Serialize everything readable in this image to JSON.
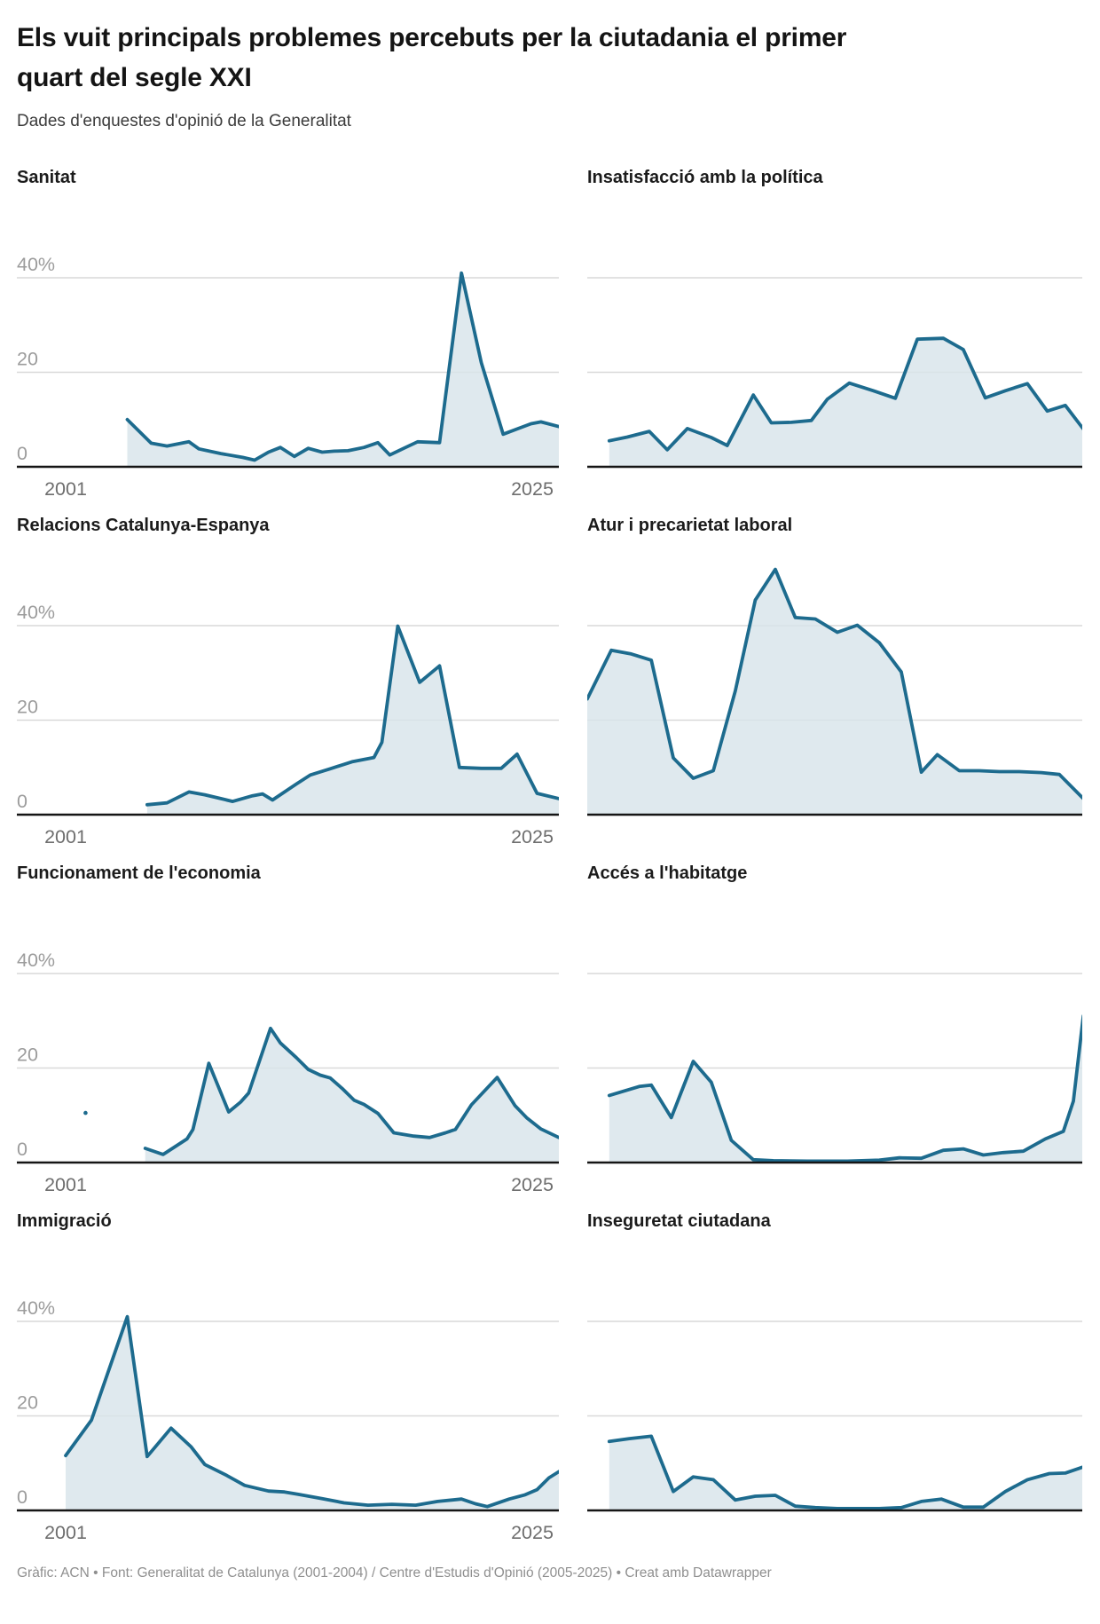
{
  "header": {
    "title": "Els vuit principals problemes percebuts per la ciutadania el primer quart del segle XXI",
    "subtitle": "Dades d'enquestes d'opinió de la Generalitat"
  },
  "footer": {
    "credit": "Gràfic: ACN • Font: Generalitat de Catalunya (2001-2004) / Centre d'Estudis d'Opinió (2005-2025) • Creat amb Datawrapper"
  },
  "colors": {
    "line": "#1d6b8e",
    "fill": "#d8e4ea",
    "grid": "#d9d9d9",
    "baseline": "#151515",
    "tick_label": "#9c9c9c",
    "year_label": "#6e6e6e"
  },
  "axis": {
    "x_range": [
      2001,
      2025.8
    ],
    "y_max": 54,
    "grid_values": [
      20,
      40
    ],
    "y_ticks": [
      {
        "value": 0,
        "label": "0"
      },
      {
        "value": 20,
        "label": "20"
      },
      {
        "value": 40,
        "label": "40%"
      }
    ],
    "x_ticks": [
      {
        "year": 2001,
        "label": "2001"
      },
      {
        "year": 2025,
        "label": "2025"
      }
    ]
  },
  "chart_data": [
    {
      "type": "area",
      "title": "Sanitat",
      "col": "left",
      "show_axis_labels": true,
      "ylabel": "%",
      "points": [
        [
          2004.1,
          10
        ],
        [
          2005.3,
          5
        ],
        [
          2006.1,
          4.4
        ],
        [
          2007.2,
          5.3
        ],
        [
          2007.7,
          3.8
        ],
        [
          2008.8,
          2.8
        ],
        [
          2009.9,
          2
        ],
        [
          2010.5,
          1.4
        ],
        [
          2011.2,
          3.1
        ],
        [
          2011.8,
          4.1
        ],
        [
          2012.5,
          2.2
        ],
        [
          2013.2,
          3.9
        ],
        [
          2013.9,
          3.1
        ],
        [
          2014.5,
          3.3
        ],
        [
          2015.2,
          3.4
        ],
        [
          2016,
          4.1
        ],
        [
          2016.7,
          5.1
        ],
        [
          2017.3,
          2.5
        ],
        [
          2018,
          3.9
        ],
        [
          2018.7,
          5.3
        ],
        [
          2019.8,
          5.1
        ],
        [
          2020.9,
          41
        ],
        [
          2021.9,
          22
        ],
        [
          2023,
          6.9
        ],
        [
          2023.7,
          8
        ],
        [
          2024.4,
          9.1
        ],
        [
          2024.9,
          9.5
        ],
        [
          2025.8,
          8.5
        ]
      ]
    },
    {
      "type": "area",
      "title": "Insatisfacció amb la política",
      "col": "right",
      "show_axis_labels": false,
      "points": [
        [
          2002.1,
          5.5
        ],
        [
          2003,
          6.3
        ],
        [
          2004.1,
          7.5
        ],
        [
          2005,
          3.6
        ],
        [
          2006,
          8.1
        ],
        [
          2007.2,
          6.2
        ],
        [
          2008,
          4.5
        ],
        [
          2009.3,
          15.2
        ],
        [
          2010.2,
          9.3
        ],
        [
          2011.2,
          9.4
        ],
        [
          2012.2,
          9.8
        ],
        [
          2013,
          14.3
        ],
        [
          2014.1,
          17.7
        ],
        [
          2015.3,
          16.1
        ],
        [
          2016.4,
          14.5
        ],
        [
          2017.5,
          27
        ],
        [
          2018.8,
          27.2
        ],
        [
          2019.8,
          24.8
        ],
        [
          2020.9,
          14.6
        ],
        [
          2021.9,
          16.1
        ],
        [
          2023,
          17.6
        ],
        [
          2024,
          11.8
        ],
        [
          2024.9,
          13
        ],
        [
          2025.8,
          8
        ]
      ]
    },
    {
      "type": "area",
      "title": "Relacions Catalunya-Espanya",
      "col": "left",
      "show_axis_labels": true,
      "points": [
        [
          2005.1,
          2.1
        ],
        [
          2006.1,
          2.5
        ],
        [
          2007.2,
          4.8
        ],
        [
          2008,
          4.2
        ],
        [
          2008.8,
          3.4
        ],
        [
          2009.4,
          2.8
        ],
        [
          2010.4,
          4
        ],
        [
          2010.9,
          4.4
        ],
        [
          2011.4,
          3.1
        ],
        [
          2012.6,
          6.5
        ],
        [
          2013.3,
          8.4
        ],
        [
          2014.3,
          9.7
        ],
        [
          2015.4,
          11.2
        ],
        [
          2016.5,
          12.1
        ],
        [
          2016.9,
          15.3
        ],
        [
          2017.7,
          39.9
        ],
        [
          2018.8,
          28
        ],
        [
          2019.8,
          31.5
        ],
        [
          2020.8,
          10
        ],
        [
          2021.9,
          9.8
        ],
        [
          2022.9,
          9.8
        ],
        [
          2023.7,
          12.8
        ],
        [
          2024.7,
          4.5
        ],
        [
          2025.8,
          3.4
        ]
      ]
    },
    {
      "type": "area",
      "title": "Atur i precarietat laboral",
      "col": "right",
      "show_axis_labels": false,
      "points": [
        [
          2001,
          24.5
        ],
        [
          2002.2,
          34.8
        ],
        [
          2003.2,
          34
        ],
        [
          2004.2,
          32.7
        ],
        [
          2005.3,
          12
        ],
        [
          2006.3,
          7.7
        ],
        [
          2007.3,
          9.3
        ],
        [
          2008.4,
          26.2
        ],
        [
          2009.4,
          45.4
        ],
        [
          2010.4,
          51.9
        ],
        [
          2011.4,
          41.7
        ],
        [
          2012.4,
          41.4
        ],
        [
          2013.5,
          38.6
        ],
        [
          2014.5,
          40.1
        ],
        [
          2015.6,
          36.4
        ],
        [
          2016.7,
          30.2
        ],
        [
          2017.7,
          9
        ],
        [
          2018.5,
          12.7
        ],
        [
          2019.6,
          9.3
        ],
        [
          2020.6,
          9.3
        ],
        [
          2021.6,
          9.1
        ],
        [
          2022.6,
          9.1
        ],
        [
          2023.7,
          8.9
        ],
        [
          2024.6,
          8.5
        ],
        [
          2025.8,
          3.4
        ]
      ]
    },
    {
      "type": "area",
      "title": "Funcionament de l'economia",
      "col": "left",
      "show_axis_labels": true,
      "isolated_points": [
        [
          2002,
          10.5
        ]
      ],
      "points": [
        [
          2005,
          3
        ],
        [
          2005.9,
          1.7
        ],
        [
          2007.1,
          5
        ],
        [
          2007.4,
          7
        ],
        [
          2008.2,
          21
        ],
        [
          2009.2,
          10.7
        ],
        [
          2009.8,
          12.8
        ],
        [
          2010.2,
          14.7
        ],
        [
          2011.3,
          28.4
        ],
        [
          2011.8,
          25.3
        ],
        [
          2012.6,
          22.2
        ],
        [
          2013.2,
          19.7
        ],
        [
          2013.8,
          18.5
        ],
        [
          2014.3,
          17.9
        ],
        [
          2014.9,
          15.7
        ],
        [
          2015.5,
          13.2
        ],
        [
          2016,
          12.3
        ],
        [
          2016.7,
          10.4
        ],
        [
          2017.5,
          6.3
        ],
        [
          2018.5,
          5.6
        ],
        [
          2019.3,
          5.3
        ],
        [
          2020.1,
          6.3
        ],
        [
          2020.6,
          7
        ],
        [
          2021.4,
          12.2
        ],
        [
          2022.7,
          18
        ],
        [
          2023.6,
          12
        ],
        [
          2024.2,
          9.4
        ],
        [
          2024.9,
          7.1
        ],
        [
          2025.8,
          5.3
        ]
      ]
    },
    {
      "type": "area",
      "title": "Accés a l'habitatge",
      "col": "right",
      "show_axis_labels": false,
      "points": [
        [
          2002.1,
          14.2
        ],
        [
          2003.6,
          16.1
        ],
        [
          2004.2,
          16.4
        ],
        [
          2005.2,
          9.5
        ],
        [
          2006.3,
          21.4
        ],
        [
          2007.2,
          17
        ],
        [
          2008.2,
          4.7
        ],
        [
          2009.3,
          0.6
        ],
        [
          2010.3,
          0.4
        ],
        [
          2012,
          0.3
        ],
        [
          2014,
          0.3
        ],
        [
          2015.6,
          0.5
        ],
        [
          2016.6,
          1
        ],
        [
          2017.7,
          0.9
        ],
        [
          2018.8,
          2.6
        ],
        [
          2019.8,
          2.9
        ],
        [
          2020.8,
          1.6
        ],
        [
          2021.8,
          2.1
        ],
        [
          2022.8,
          2.4
        ],
        [
          2023.9,
          5
        ],
        [
          2024.8,
          6.6
        ],
        [
          2025.3,
          13
        ],
        [
          2025.8,
          31
        ]
      ]
    },
    {
      "type": "area",
      "title": "Immigració",
      "col": "left",
      "show_axis_labels": true,
      "points": [
        [
          2001,
          11.6
        ],
        [
          2002.3,
          19.1
        ],
        [
          2004.1,
          41
        ],
        [
          2005.1,
          11.4
        ],
        [
          2006.3,
          17.4
        ],
        [
          2007.3,
          13.5
        ],
        [
          2008,
          9.7
        ],
        [
          2009.1,
          7.4
        ],
        [
          2010,
          5.3
        ],
        [
          2011.2,
          4.1
        ],
        [
          2012,
          3.9
        ],
        [
          2012.7,
          3.4
        ],
        [
          2013.9,
          2.5
        ],
        [
          2015,
          1.6
        ],
        [
          2016.2,
          1.1
        ],
        [
          2017.4,
          1.3
        ],
        [
          2018.6,
          1.1
        ],
        [
          2019.7,
          1.9
        ],
        [
          2020.9,
          2.4
        ],
        [
          2021.6,
          1.4
        ],
        [
          2022.2,
          0.8
        ],
        [
          2023.3,
          2.4
        ],
        [
          2024.1,
          3.3
        ],
        [
          2024.7,
          4.4
        ],
        [
          2025.3,
          6.9
        ],
        [
          2025.8,
          8.2
        ]
      ]
    },
    {
      "type": "area",
      "title": "Inseguretat ciutadana",
      "col": "right",
      "show_axis_labels": false,
      "points": [
        [
          2002.1,
          14.6
        ],
        [
          2003.1,
          15.2
        ],
        [
          2004.2,
          15.7
        ],
        [
          2005.3,
          4
        ],
        [
          2006.3,
          7.1
        ],
        [
          2007.3,
          6.5
        ],
        [
          2008.4,
          2.2
        ],
        [
          2009.4,
          3
        ],
        [
          2010.4,
          3.2
        ],
        [
          2011.4,
          0.9
        ],
        [
          2012.4,
          0.6
        ],
        [
          2013.5,
          0.4
        ],
        [
          2014.5,
          0.4
        ],
        [
          2015.6,
          0.4
        ],
        [
          2016.7,
          0.6
        ],
        [
          2017.7,
          1.9
        ],
        [
          2018.7,
          2.4
        ],
        [
          2019.8,
          0.7
        ],
        [
          2020.8,
          0.7
        ],
        [
          2021.9,
          4
        ],
        [
          2023,
          6.5
        ],
        [
          2024.1,
          7.8
        ],
        [
          2024.9,
          7.9
        ],
        [
          2025.8,
          9.2
        ]
      ]
    }
  ]
}
